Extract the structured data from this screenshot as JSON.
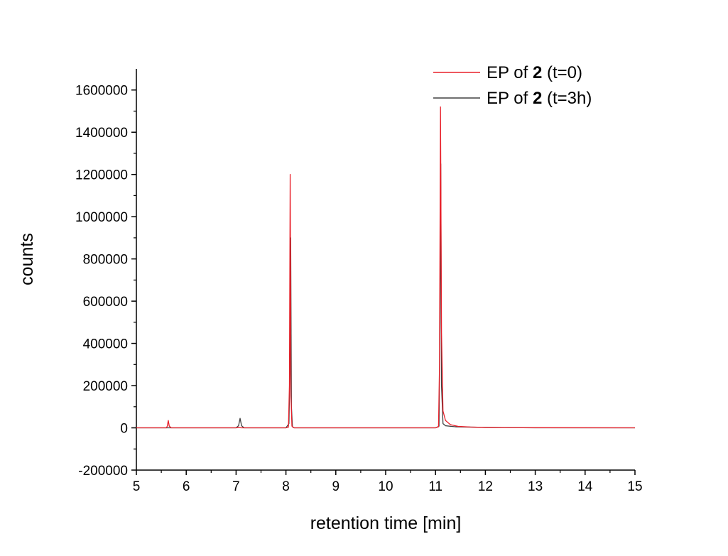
{
  "chart_data": {
    "type": "line",
    "title": "",
    "xlabel": "retention time [min]",
    "ylabel": "counts",
    "xlim": [
      5,
      15
    ],
    "ylim": [
      -200000,
      1700000
    ],
    "x_ticks": [
      5,
      6,
      7,
      8,
      9,
      10,
      11,
      12,
      13,
      14,
      15
    ],
    "y_ticks": [
      -200000,
      0,
      200000,
      400000,
      600000,
      800000,
      1000000,
      1200000,
      1400000,
      1600000
    ],
    "grid": false,
    "legend_position": "top-right",
    "series": [
      {
        "name": "EP of 2 (t=0)",
        "legend": {
          "prefix": "EP of ",
          "bold": "2",
          "suffix": " (t=0)"
        },
        "color": "#e8202a",
        "points": [
          [
            5.0,
            0
          ],
          [
            5.6,
            0
          ],
          [
            5.62,
            8000
          ],
          [
            5.64,
            35000
          ],
          [
            5.66,
            8000
          ],
          [
            5.7,
            0
          ],
          [
            7.0,
            0
          ],
          [
            7.05,
            2000
          ],
          [
            7.1,
            0
          ],
          [
            8.0,
            0
          ],
          [
            8.05,
            3000
          ],
          [
            8.07,
            200000
          ],
          [
            8.085,
            1200000
          ],
          [
            8.1,
            150000
          ],
          [
            8.12,
            8000
          ],
          [
            8.16,
            0
          ],
          [
            11.0,
            0
          ],
          [
            11.06,
            5000
          ],
          [
            11.08,
            300000
          ],
          [
            11.1,
            1520000
          ],
          [
            11.12,
            450000
          ],
          [
            11.15,
            80000
          ],
          [
            11.2,
            35000
          ],
          [
            11.3,
            15000
          ],
          [
            11.45,
            7000
          ],
          [
            11.7,
            4000
          ],
          [
            12.0,
            2000
          ],
          [
            12.5,
            1000
          ],
          [
            15.0,
            0
          ]
        ]
      },
      {
        "name": "EP of 2 (t=3h)",
        "legend": {
          "prefix": "EP of ",
          "bold": "2",
          "suffix": " (t=3h)"
        },
        "color": "#404040",
        "points": [
          [
            5.0,
            0
          ],
          [
            7.0,
            0
          ],
          [
            7.05,
            10000
          ],
          [
            7.08,
            45000
          ],
          [
            7.11,
            10000
          ],
          [
            7.16,
            0
          ],
          [
            8.0,
            0
          ],
          [
            8.06,
            20000
          ],
          [
            8.08,
            260000
          ],
          [
            8.095,
            900000
          ],
          [
            8.11,
            100000
          ],
          [
            8.13,
            5000
          ],
          [
            8.17,
            0
          ],
          [
            11.0,
            0
          ],
          [
            11.07,
            8000
          ],
          [
            11.09,
            500000
          ],
          [
            11.105,
            1250000
          ],
          [
            11.12,
            200000
          ],
          [
            11.15,
            20000
          ],
          [
            11.2,
            10000
          ],
          [
            11.4,
            5000
          ],
          [
            12.0,
            2000
          ],
          [
            13.0,
            0
          ],
          [
            15.0,
            0
          ]
        ]
      }
    ]
  }
}
